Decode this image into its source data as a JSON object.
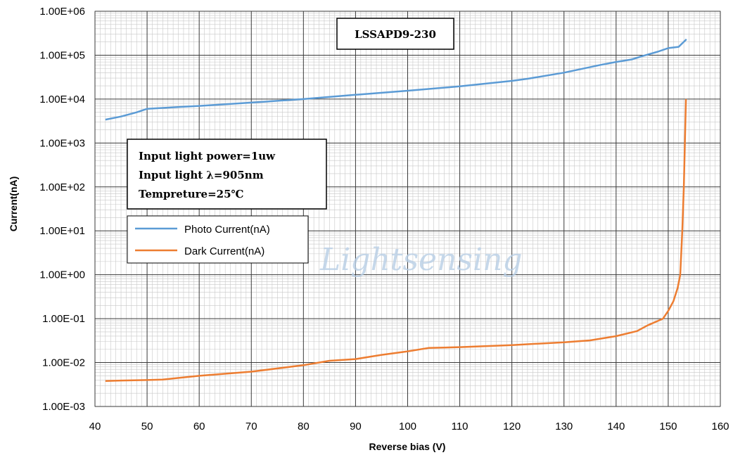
{
  "chart_data": {
    "type": "line",
    "title": "",
    "xlabel": "Reverse bias (V)",
    "ylabel": "Current(nA)",
    "xlim": [
      40,
      160
    ],
    "ylim": [
      0.001,
      1000000
    ],
    "y_scale": "log",
    "grid": true,
    "x_ticks": [
      "40",
      "50",
      "60",
      "70",
      "80",
      "90",
      "100",
      "110",
      "120",
      "130",
      "140",
      "150",
      "160"
    ],
    "y_ticks": [
      "1.00E+06",
      "1.00E+05",
      "1.00E+04",
      "1.00E+03",
      "1.00E+02",
      "1.00E+01",
      "1.00E+00",
      "1.00E-01",
      "1.00E-02",
      "1.00E-03"
    ],
    "series": [
      {
        "name": "Photo Current(nA)",
        "color": "#5b9bd5",
        "points": [
          [
            42,
            3400
          ],
          [
            45,
            4000
          ],
          [
            48,
            5000
          ],
          [
            50,
            6000
          ],
          [
            55,
            6500
          ],
          [
            60,
            7000
          ],
          [
            70,
            8300
          ],
          [
            80,
            10000
          ],
          [
            90,
            12500
          ],
          [
            100,
            15500
          ],
          [
            110,
            19500
          ],
          [
            120,
            26000
          ],
          [
            123,
            29000
          ],
          [
            130,
            40000
          ],
          [
            137,
            60000
          ],
          [
            140,
            70000
          ],
          [
            143,
            80000
          ],
          [
            145,
            95000
          ],
          [
            148,
            120000
          ],
          [
            150,
            145000
          ],
          [
            152,
            155000
          ],
          [
            153.5,
            230000
          ]
        ]
      },
      {
        "name": "Dark Current(nA)",
        "color": "#ed7d31",
        "points": [
          [
            42,
            0.0038
          ],
          [
            45,
            0.0039
          ],
          [
            50,
            0.004
          ],
          [
            53,
            0.0041
          ],
          [
            60,
            0.005
          ],
          [
            70,
            0.0062
          ],
          [
            80,
            0.0087
          ],
          [
            85,
            0.011
          ],
          [
            90,
            0.012
          ],
          [
            95,
            0.015
          ],
          [
            100,
            0.018
          ],
          [
            104,
            0.0215
          ],
          [
            110,
            0.0225
          ],
          [
            120,
            0.025
          ],
          [
            130,
            0.029
          ],
          [
            135,
            0.032
          ],
          [
            140,
            0.04
          ],
          [
            144,
            0.052
          ],
          [
            146,
            0.07
          ],
          [
            149,
            0.1
          ],
          [
            150,
            0.15
          ],
          [
            151,
            0.25
          ],
          [
            151.8,
            0.5
          ],
          [
            152.3,
            1
          ],
          [
            152.7,
            10
          ],
          [
            153,
            100
          ],
          [
            153.2,
            1000
          ],
          [
            153.4,
            10000
          ]
        ]
      }
    ],
    "legend": {
      "position": "left-middle",
      "entries": [
        "Photo Current(nA)",
        "Dark Current(nA)"
      ]
    },
    "annotation_box": {
      "line1": "Input light power=1uw",
      "line2": "Input light λ=905nm",
      "line3": "Tempreture=25℃"
    },
    "device_label": "LSSAPD9-230",
    "watermark": "Lightsensing"
  }
}
